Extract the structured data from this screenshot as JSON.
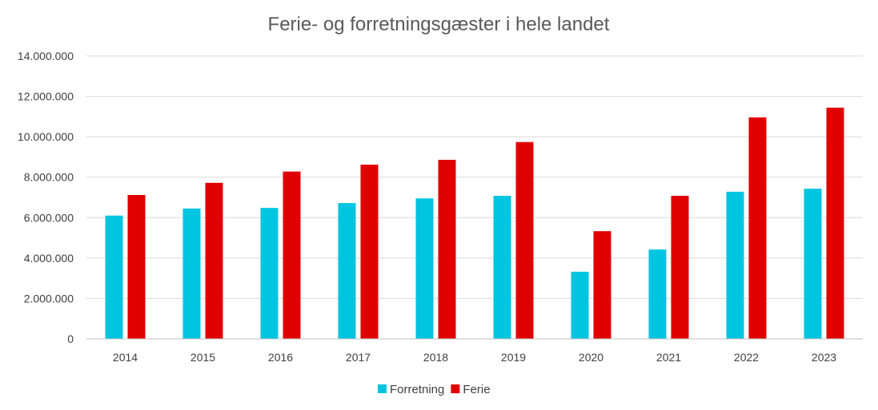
{
  "chart_data": {
    "type": "bar",
    "title": "Ferie- og forretningsgæster i hele landet",
    "xlabel": "",
    "ylabel": "",
    "categories": [
      "2014",
      "2015",
      "2016",
      "2017",
      "2018",
      "2019",
      "2020",
      "2021",
      "2022",
      "2023"
    ],
    "series": [
      {
        "name": "Forretning",
        "color": "#00c5e0",
        "values": [
          6100000,
          6450000,
          6480000,
          6720000,
          6950000,
          7080000,
          3320000,
          4420000,
          7280000,
          7430000
        ]
      },
      {
        "name": "Ferie",
        "color": "#e00000",
        "values": [
          7120000,
          7720000,
          8280000,
          8620000,
          8860000,
          9740000,
          5330000,
          7080000,
          10960000,
          11440000
        ]
      }
    ],
    "ylim": [
      0,
      14000000
    ],
    "yticks": [
      0,
      2000000,
      4000000,
      6000000,
      8000000,
      10000000,
      12000000,
      14000000
    ],
    "ytick_labels": [
      "0",
      "2.000.000",
      "4.000.000",
      "6.000.000",
      "8.000.000",
      "10.000.000",
      "12.000.000",
      "14.000.000"
    ],
    "grid": true,
    "legend_position": "bottom"
  }
}
